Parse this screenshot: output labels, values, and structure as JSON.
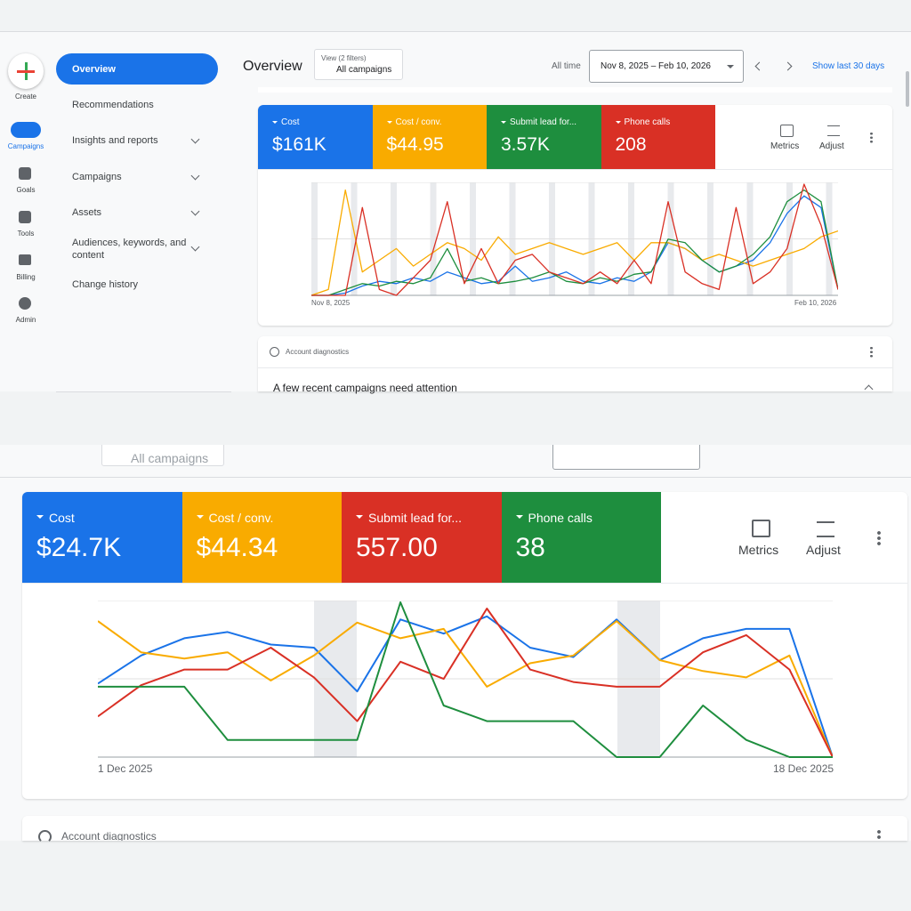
{
  "top": {
    "sidebar": [
      "Create",
      "Campaigns",
      "Goals",
      "Tools",
      "Billing",
      "Admin"
    ],
    "nav": [
      "Overview",
      "Recommendations",
      "Insights and reports",
      "Campaigns",
      "Assets",
      "Audiences, keywords, and content",
      "Change history"
    ],
    "header": {
      "title": "Overview",
      "filter_label": "View (2 filters)",
      "filter_value": "All campaigns",
      "range_label": "All time",
      "date_range": "Nov 8, 2025 – Feb 10, 2026",
      "shortcut": "Show last 30 days"
    },
    "metrics": [
      {
        "name": "Cost",
        "value": "$161K",
        "color": "#1a73e8"
      },
      {
        "name": "Cost / conv.",
        "value": "$44.95",
        "color": "#f9ab00"
      },
      {
        "name": "Submit lead for...",
        "value": "3.57K",
        "color": "#1e8e3e"
      },
      {
        "name": "Phone calls",
        "value": "208",
        "color": "#d93025"
      }
    ],
    "tools": [
      "Metrics",
      "Adjust"
    ],
    "chart": {
      "type": "line",
      "x_start": "Nov 8, 2025",
      "x_end": "Feb 10, 2026",
      "series": [
        {
          "color": "#1a73e8",
          "values": [
            0,
            0,
            2,
            8,
            12,
            10,
            15,
            12,
            20,
            15,
            10,
            12,
            25,
            12,
            15,
            20,
            12,
            10,
            15,
            12,
            20,
            45,
            40,
            30,
            20,
            25,
            30,
            45,
            70,
            85,
            75,
            5
          ]
        },
        {
          "color": "#f9ab00",
          "values": [
            0,
            5,
            90,
            20,
            30,
            40,
            25,
            35,
            45,
            40,
            30,
            50,
            35,
            40,
            45,
            40,
            35,
            40,
            45,
            30,
            45,
            45,
            40,
            30,
            35,
            30,
            25,
            30,
            35,
            40,
            50,
            55
          ]
        },
        {
          "color": "#1e8e3e",
          "values": [
            0,
            0,
            5,
            10,
            8,
            12,
            10,
            15,
            40,
            12,
            15,
            10,
            12,
            15,
            20,
            12,
            10,
            15,
            12,
            18,
            20,
            48,
            45,
            30,
            20,
            25,
            35,
            50,
            80,
            90,
            80,
            5
          ]
        },
        {
          "color": "#d93025",
          "values": [
            0,
            0,
            0,
            75,
            5,
            0,
            15,
            30,
            80,
            10,
            40,
            10,
            30,
            35,
            20,
            15,
            10,
            20,
            10,
            30,
            10,
            80,
            20,
            10,
            5,
            75,
            10,
            20,
            40,
            95,
            60,
            5
          ]
        }
      ]
    },
    "diagnostics": {
      "title": "Account diagnostics",
      "message": "A few recent campaigns need attention"
    }
  },
  "bottom": {
    "partial_button": "All campaigns",
    "metrics": [
      {
        "name": "Cost",
        "value": "$24.7K",
        "color": "#1a73e8"
      },
      {
        "name": "Cost / conv.",
        "value": "$44.34",
        "color": "#f9ab00"
      },
      {
        "name": "Submit lead for...",
        "value": "557.00",
        "color": "#d93025"
      },
      {
        "name": "Phone calls",
        "value": "38",
        "color": "#1e8e3e"
      }
    ],
    "tools": [
      "Metrics",
      "Adjust"
    ],
    "chart": {
      "type": "line",
      "x_start": "1 Dec 2025",
      "x_end": "18 Dec 2025",
      "series": [
        {
          "color": "#1a73e8",
          "values": [
            47,
            65,
            76,
            80,
            72,
            70,
            42,
            88,
            79,
            90,
            70,
            64,
            88,
            62,
            76,
            82,
            82,
            0
          ]
        },
        {
          "color": "#f9ab00",
          "values": [
            87,
            67,
            63,
            67,
            49,
            65,
            86,
            76,
            82,
            45,
            60,
            65,
            87,
            62,
            55,
            51,
            65,
            0
          ]
        },
        {
          "color": "#d93025",
          "values": [
            26,
            46,
            56,
            56,
            70,
            51,
            23,
            61,
            50,
            95,
            56,
            48,
            45,
            45,
            67,
            78,
            56,
            0
          ]
        },
        {
          "color": "#1e8e3e",
          "values": [
            45,
            45,
            45,
            11,
            11,
            11,
            11,
            99,
            33,
            23,
            23,
            23,
            0,
            0,
            33,
            11,
            0,
            0
          ]
        }
      ]
    },
    "diagnostics": {
      "title": "Account diagnostics"
    }
  }
}
